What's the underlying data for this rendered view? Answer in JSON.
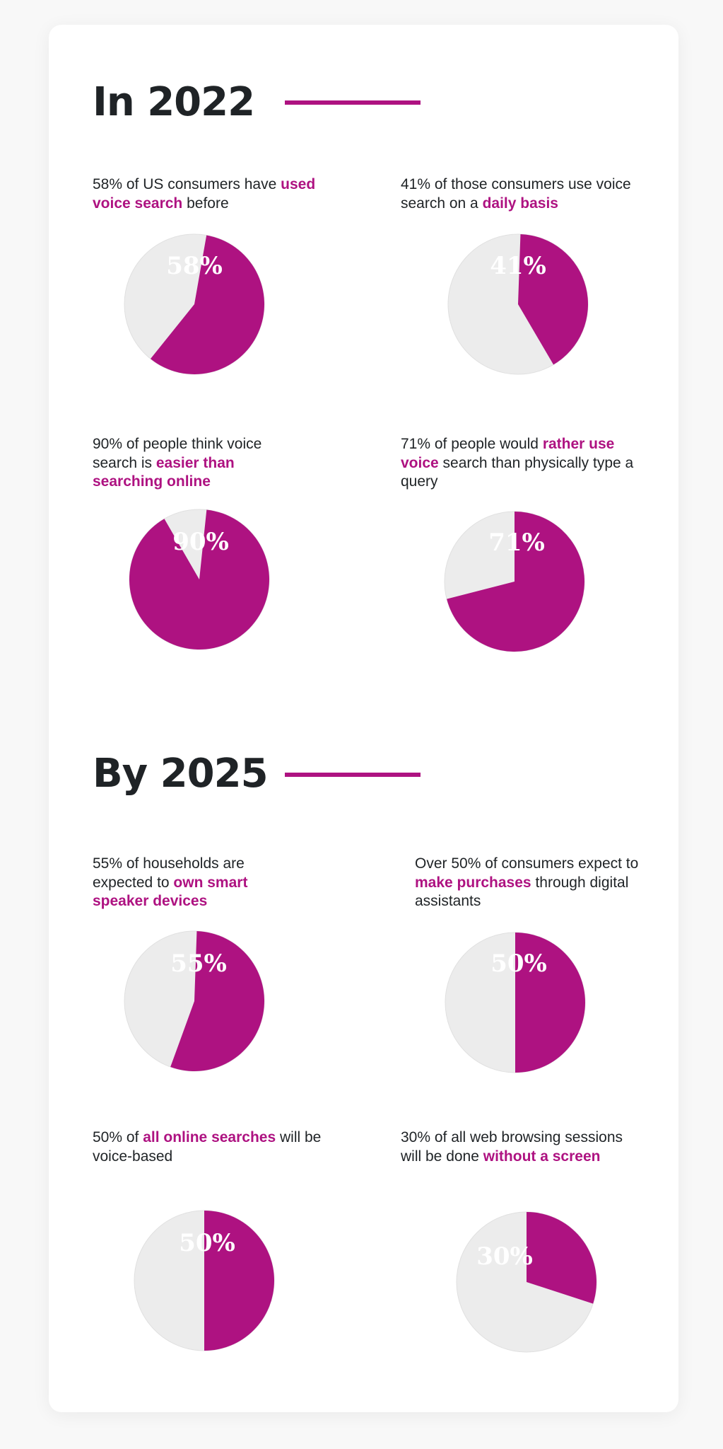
{
  "sections": [
    {
      "title": "In 2022"
    },
    {
      "title": "By 2025"
    }
  ],
  "colors": {
    "accent": "#ae1281",
    "pie_rest": "#ececec",
    "text": "#1f2326"
  },
  "chart_data": [
    {
      "type": "pie",
      "values": [
        58,
        42
      ],
      "data_label": "58%",
      "caption": {
        "pre": "58% of US consumers have ",
        "highlight": "used voice search",
        "post": " before"
      }
    },
    {
      "type": "pie",
      "values": [
        41,
        59
      ],
      "data_label": "41%",
      "caption": {
        "pre": "41% of those consumers use voice search on a ",
        "highlight": "daily basis",
        "post": ""
      }
    },
    {
      "type": "pie",
      "values": [
        90,
        10
      ],
      "data_label": "90%",
      "caption": {
        "pre": "90% of people think voice search is ",
        "highlight": "easier than searching online",
        "post": ""
      }
    },
    {
      "type": "pie",
      "values": [
        71,
        29
      ],
      "data_label": "71%",
      "caption": {
        "pre": "71% of people would ",
        "highlight": "rather use voice",
        "post": " search than physically type a query"
      }
    },
    {
      "type": "pie",
      "values": [
        55,
        45
      ],
      "data_label": "55%",
      "caption": {
        "pre": "55% of households are expected to ",
        "highlight": "own smart speaker devices",
        "post": ""
      }
    },
    {
      "type": "pie",
      "values": [
        50,
        50
      ],
      "data_label": "50%",
      "caption": {
        "pre": "Over 50% of consumers expect to ",
        "highlight": "make purchases",
        "post": " through digital assistants"
      }
    },
    {
      "type": "pie",
      "values": [
        50,
        50
      ],
      "data_label": "50%",
      "caption": {
        "pre": "50% of ",
        "highlight": "all online searches",
        "post": " will be voice-based"
      }
    },
    {
      "type": "pie",
      "values": [
        30,
        70
      ],
      "data_label": "30%",
      "caption": {
        "pre": "30% of all web browsing sessions will be done ",
        "highlight": "without a screen",
        "post": ""
      }
    }
  ]
}
